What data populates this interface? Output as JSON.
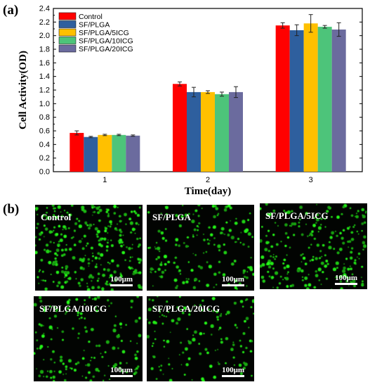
{
  "panel_labels": {
    "a": "(a)",
    "b": "(b)"
  },
  "chart_data": {
    "type": "bar",
    "xlabel": "Time(day)",
    "ylabel": "Cell Activity(OD)",
    "categories": [
      "1",
      "2",
      "3"
    ],
    "ylim": [
      0,
      2.4
    ],
    "yticks": [
      "0.0",
      "0.2",
      "0.4",
      "0.6",
      "0.8",
      "1.0",
      "1.2",
      "1.4",
      "1.6",
      "1.8",
      "2.0",
      "2.2",
      "2.4"
    ],
    "legend_position": "top-left",
    "series": [
      {
        "name": "Control",
        "color": "#ff0000",
        "values": [
          0.57,
          1.29,
          2.15
        ],
        "errors": [
          0.03,
          0.03,
          0.04
        ]
      },
      {
        "name": "SF/PLGA",
        "color": "#2e5f9e",
        "values": [
          0.51,
          1.17,
          2.08
        ],
        "errors": [
          0.01,
          0.07,
          0.08
        ]
      },
      {
        "name": "SF/PLGA/5ICG",
        "color": "#ffc000",
        "values": [
          0.54,
          1.17,
          2.18
        ],
        "errors": [
          0.01,
          0.02,
          0.13
        ]
      },
      {
        "name": "SF/PLGA/10ICG",
        "color": "#4dc47a",
        "values": [
          0.54,
          1.14,
          2.13
        ],
        "errors": [
          0.01,
          0.03,
          0.02
        ]
      },
      {
        "name": "SF/PLGA/20ICG",
        "color": "#6b6b9e",
        "values": [
          0.53,
          1.17,
          2.09
        ],
        "errors": [
          0.01,
          0.08,
          0.1
        ]
      }
    ]
  },
  "micrographs": [
    {
      "label": "Control",
      "scale": "100μm",
      "density": 0.9
    },
    {
      "label": "SF/PLGA",
      "scale": "100μm",
      "density": 0.5
    },
    {
      "label": "SF/PLGA/5ICG",
      "scale": "100μm",
      "density": 0.7
    },
    {
      "label": "SF/PLGA/10ICG",
      "scale": "100μm",
      "density": 0.45
    },
    {
      "label": "SF/PLGA/20ICG",
      "scale": "100μm",
      "density": 0.4
    }
  ]
}
